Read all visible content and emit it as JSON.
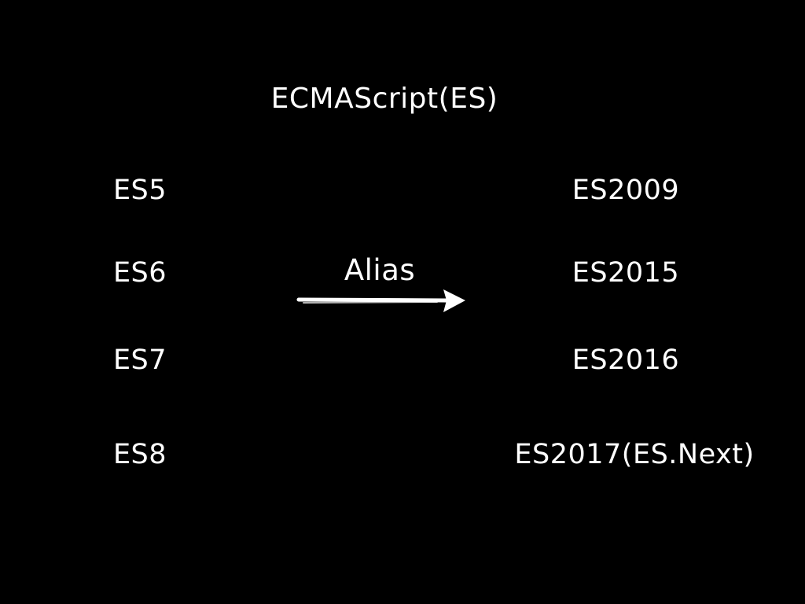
{
  "title": "ECMAScript(ES)",
  "connector": {
    "label": "Alias",
    "arrow_icon": "right-arrow-icon"
  },
  "versions": [
    {
      "name": "ES5",
      "alias": "ES2009"
    },
    {
      "name": "ES6",
      "alias": "ES2015"
    },
    {
      "name": "ES7",
      "alias": "ES2016"
    },
    {
      "name": "ES8",
      "alias": "ES2017(ES.Next)"
    }
  ],
  "colors": {
    "background": "#000000",
    "foreground": "#ffffff"
  }
}
